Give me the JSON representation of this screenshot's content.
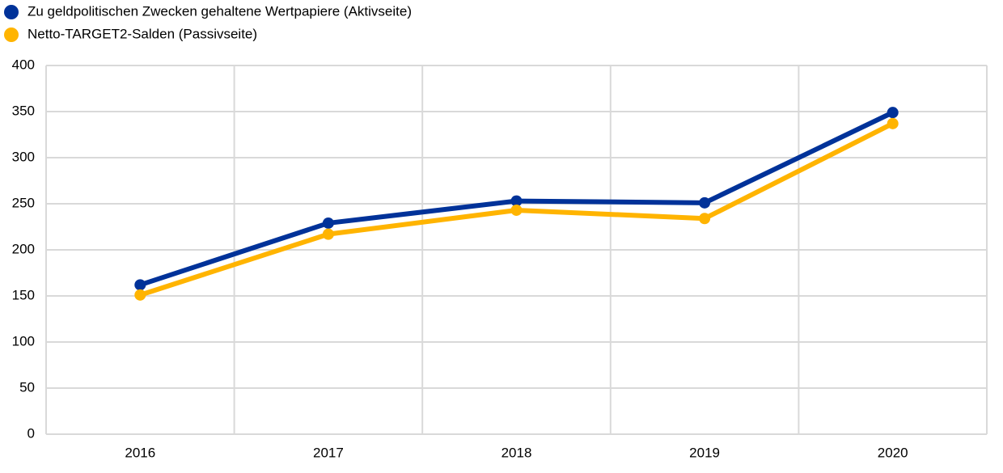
{
  "chart_data": {
    "type": "line",
    "categories": [
      "2016",
      "2017",
      "2018",
      "2019",
      "2020"
    ],
    "series": [
      {
        "name": "Zu geldpolitischen Zwecken gehaltene Wertpapiere (Aktivseite)",
        "color": "#003299",
        "values": [
          162,
          229,
          253,
          251,
          349
        ]
      },
      {
        "name": "Netto-TARGET2-Salden (Passivseite)",
        "color": "#ffb400",
        "values": [
          151,
          217,
          243,
          234,
          337
        ]
      }
    ],
    "ylim": [
      0,
      400
    ],
    "yticks": [
      0,
      50,
      100,
      150,
      200,
      250,
      300,
      350,
      400
    ],
    "grid": true
  }
}
